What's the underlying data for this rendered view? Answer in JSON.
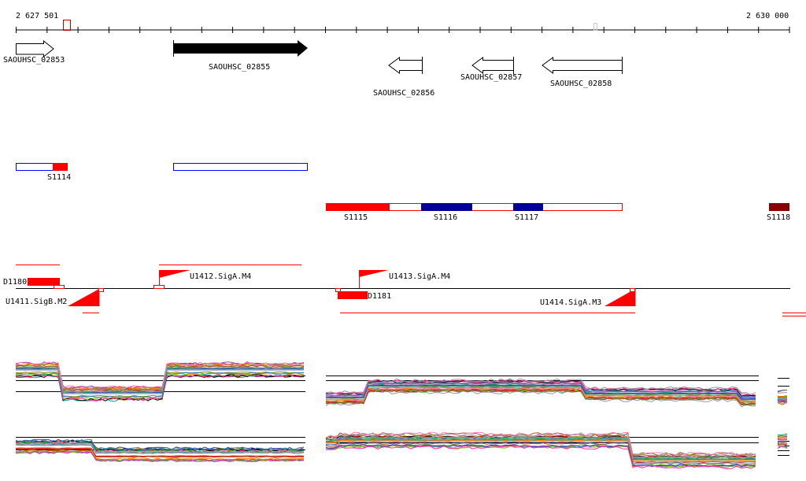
{
  "ruler": {
    "start_label": "2 627 501",
    "end_label": "2 630 000"
  },
  "genes": [
    {
      "name": "SAOUHSC_02853",
      "strand": "+",
      "filled": false
    },
    {
      "name": "SAOUHSC_02855",
      "strand": "+",
      "filled": true
    },
    {
      "name": "SAOUHSC_02856",
      "strand": "-",
      "filled": false
    },
    {
      "name": "SAOUHSC_02857",
      "strand": "-",
      "filled": false
    },
    {
      "name": "SAOUHSC_02858",
      "strand": "-",
      "filled": false
    }
  ],
  "segments": [
    "S1114",
    "S1115",
    "S1116",
    "S1117",
    "S1118"
  ],
  "features": {
    "d1180": "D1180",
    "d1181": "D1181",
    "u1411": "U1411.SigB.M2",
    "u1412": "U1412.SigA.M4",
    "u1413": "U1413.SigA.M4",
    "u1414": "U1414.SigA.M3"
  },
  "colors": {
    "red": "#ff0000",
    "navy": "#000099",
    "darkred": "#880000",
    "blue": "#0000ff"
  }
}
